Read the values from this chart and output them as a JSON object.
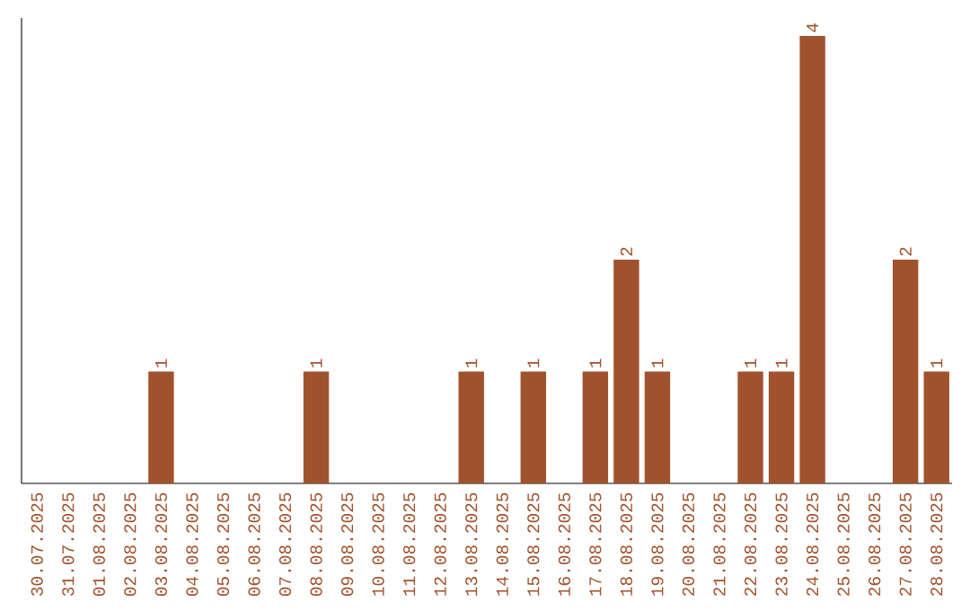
{
  "chart_data": {
    "type": "bar",
    "color": "#a0522d",
    "categories": [
      "30.07.2025",
      "31.07.2025",
      "01.08.2025",
      "02.08.2025",
      "03.08.2025",
      "04.08.2025",
      "05.08.2025",
      "06.08.2025",
      "07.08.2025",
      "08.08.2025",
      "09.08.2025",
      "10.08.2025",
      "11.08.2025",
      "12.08.2025",
      "13.08.2025",
      "14.08.2025",
      "15.08.2025",
      "16.08.2025",
      "17.08.2025",
      "18.08.2025",
      "19.08.2025",
      "20.08.2025",
      "21.08.2025",
      "22.08.2025",
      "23.08.2025",
      "24.08.2025",
      "25.08.2025",
      "26.08.2025",
      "27.08.2025",
      "28.08.2025"
    ],
    "values": [
      0,
      0,
      0,
      0,
      1,
      0,
      0,
      0,
      0,
      1,
      0,
      0,
      0,
      0,
      1,
      0,
      1,
      0,
      1,
      2,
      1,
      0,
      0,
      1,
      1,
      4,
      0,
      0,
      2,
      1
    ],
    "value_labels": [
      null,
      null,
      null,
      null,
      "1",
      null,
      null,
      null,
      null,
      "1",
      null,
      null,
      null,
      null,
      "1",
      null,
      "1",
      null,
      "1",
      "2",
      "1",
      null,
      null,
      "1",
      "1",
      "4",
      null,
      null,
      "2",
      "1"
    ],
    "tick_labels": "x"
  }
}
